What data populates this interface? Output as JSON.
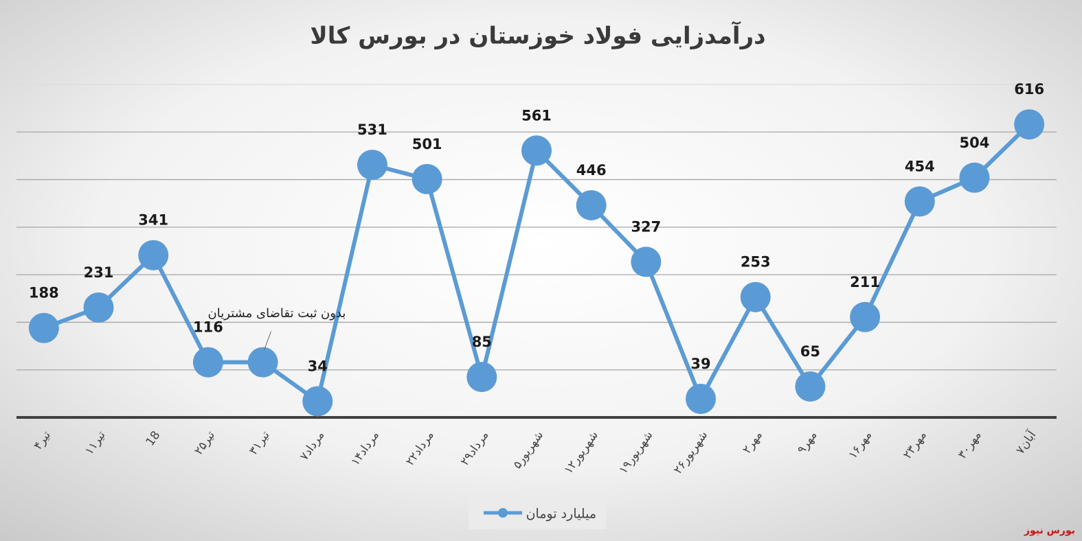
{
  "chart_data": {
    "type": "line",
    "title": "درآمدزایی فولاد خوزستان در بورس کالا",
    "categories": [
      "۴تیر",
      "۱۱تیر",
      "18",
      "۲۵تیر",
      "۳۱تیر",
      "۷مرداد",
      "۱۴مرداد",
      "۲۲مرداد",
      "۲۹مرداد",
      "۵شهریور",
      "۱۲شهریور",
      "۱۹شهریور",
      "۲۶شهریور",
      "۲مهر",
      "۹مهر",
      "۱۶مهر",
      "۲۳مهر",
      "۳۰مهر",
      "۷آبان"
    ],
    "series": [
      {
        "name": "میلیارد تومان",
        "color": "#5b9bd5",
        "values": [
          188,
          231,
          341,
          116,
          116,
          34,
          531,
          501,
          85,
          561,
          446,
          327,
          39,
          253,
          65,
          211,
          454,
          504,
          616
        ],
        "value_labels": [
          "188",
          "231",
          "341",
          "116",
          null,
          "34",
          "531",
          "501",
          "85",
          "561",
          "446",
          "327",
          "39",
          "253",
          "65",
          "211",
          "454",
          "504",
          "616"
        ]
      }
    ],
    "ylim": [
      0,
      700
    ],
    "yticks": [
      0,
      100,
      200,
      300,
      400,
      500,
      600,
      700
    ],
    "grid": true,
    "legend": "bottom",
    "annotation": "بدون ثبت تقاضای مشتریان",
    "source": "بورس نیوز"
  }
}
